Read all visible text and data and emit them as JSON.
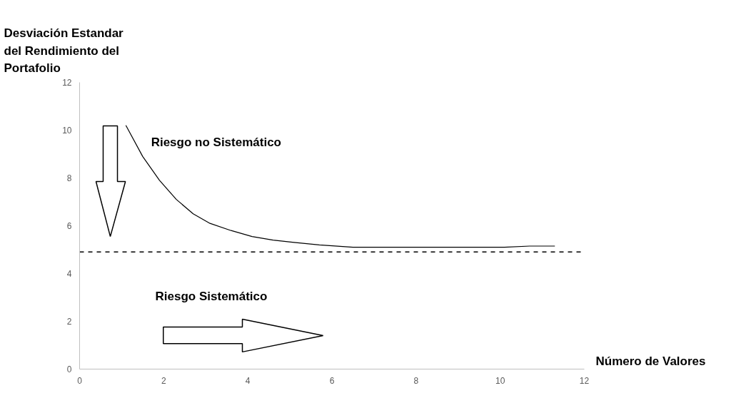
{
  "chart_data": {
    "type": "line",
    "ylabel": "Desviación Estandar del Rendimiento del Portafolio",
    "xlabel": "Número de Valores",
    "x": [
      1.1,
      1.5,
      1.9,
      2.3,
      2.7,
      3.1,
      3.6,
      4.1,
      4.6,
      5.1,
      5.7,
      6.5,
      7.5,
      8.5,
      9.5,
      10.1,
      10.7,
      11.3
    ],
    "series": [
      {
        "color": "#000000",
        "values": [
          10.2,
          8.9,
          7.9,
          7.1,
          6.5,
          6.1,
          5.8,
          5.55,
          5.4,
          5.3,
          5.2,
          5.1,
          5.1,
          5.1,
          5.1,
          5.1,
          5.15,
          5.15
        ]
      }
    ],
    "xlim": [
      0,
      12
    ],
    "xticks": [
      0,
      2,
      4,
      6,
      8,
      10,
      12
    ],
    "ylim": [
      0,
      12
    ],
    "yticks": [
      0,
      2,
      4,
      6,
      8,
      10,
      12
    ],
    "ref_lines": [
      {
        "axis": "y",
        "value": 4.9,
        "color": "#000000",
        "line_style": "dashed"
      }
    ],
    "annotations": [
      "Riesgo no Sistemático",
      "Riesgo Sistemático"
    ],
    "grid": false,
    "marker": "none",
    "line_style": "solid"
  }
}
